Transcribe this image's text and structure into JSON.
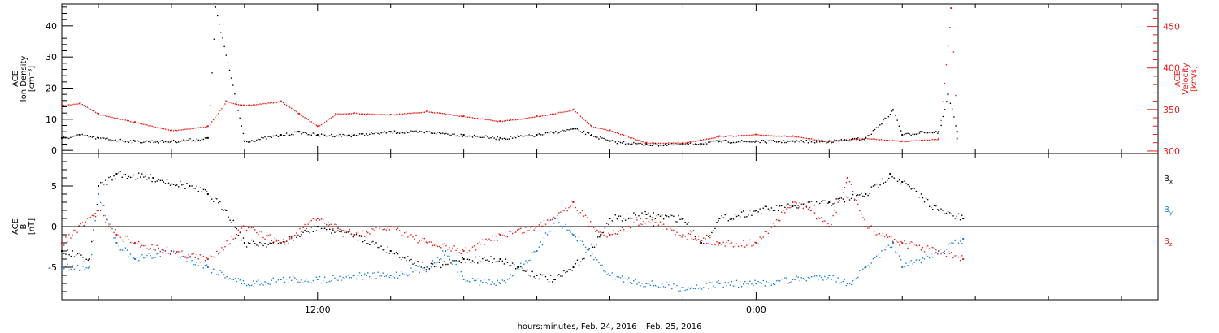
{
  "chart_data": {
    "type": "scatter",
    "colors": {
      "black": "#000000",
      "red": "#e0201c",
      "blue": "#1e7fd6"
    },
    "time_axis": {
      "range": [
        "2016-02-24 05:00",
        "2016-02-25 11:00"
      ],
      "major_ticks": [
        {
          "time": "2016-02-24 12:00",
          "label": "12:00"
        },
        {
          "time": "2016-02-25 00:00",
          "label": "0:00"
        }
      ],
      "minor_ticks_every_hours": 2,
      "title": "hours:minutes, Feb. 24, 2016 – Feb. 25, 2016"
    },
    "panels": [
      {
        "name": "density-velocity",
        "left_axis": {
          "title_lines": [
            "ACE",
            "Ion Density",
            "[cm⁻³]"
          ],
          "ylim": [
            -1,
            47
          ],
          "ticks": [
            "0",
            "10",
            "20",
            "30",
            "40"
          ],
          "color": "#000000"
        },
        "right_axis": {
          "title_lines": [
            "ACE",
            "Velocity",
            "[km/s]"
          ],
          "ylim": [
            297,
            477
          ],
          "ticks": [
            "300",
            "350",
            "400",
            "450"
          ],
          "color": "#e0201c"
        },
        "series": [
          {
            "axis": "left",
            "color": "#000000",
            "points": [
              [
                "2016-02-24 05:00",
                4
              ],
              [
                "2016-02-24 05:30",
                5
              ],
              [
                "2016-02-24 06:00",
                4
              ],
              [
                "2016-02-24 07:00",
                3
              ],
              [
                "2016-02-24 08:00",
                3
              ],
              [
                "2016-02-24 09:00",
                4
              ],
              [
                "2016-02-24 09:12",
                46
              ],
              [
                "2016-02-24 10:00",
                3
              ],
              [
                "2016-02-24 11:00",
                5
              ],
              [
                "2016-02-24 11:30",
                6
              ],
              [
                "2016-02-24 12:00",
                5
              ],
              [
                "2016-02-24 13:00",
                5
              ],
              [
                "2016-02-24 14:00",
                6
              ],
              [
                "2016-02-24 15:00",
                6
              ],
              [
                "2016-02-24 16:00",
                5
              ],
              [
                "2016-02-24 17:00",
                4
              ],
              [
                "2016-02-24 18:00",
                5
              ],
              [
                "2016-02-24 19:00",
                7
              ],
              [
                "2016-02-24 19:30",
                5
              ],
              [
                "2016-02-24 20:00",
                3
              ],
              [
                "2016-02-24 21:00",
                2
              ],
              [
                "2016-02-24 22:00",
                2
              ],
              [
                "2016-02-24 23:00",
                3
              ],
              [
                "2016-02-25 00:00",
                3
              ],
              [
                "2016-02-25 01:00",
                3
              ],
              [
                "2016-02-25 02:00",
                3
              ],
              [
                "2016-02-25 03:00",
                4
              ],
              [
                "2016-02-25 03:45",
                13
              ],
              [
                "2016-02-25 04:00",
                5
              ],
              [
                "2016-02-25 04:30",
                6
              ],
              [
                "2016-02-25 05:00",
                6
              ],
              [
                "2016-02-25 05:15",
                18
              ],
              [
                "2016-02-25 05:30",
                6
              ]
            ]
          },
          {
            "axis": "right",
            "color": "#e0201c",
            "points": [
              [
                "2016-02-24 05:00",
                355
              ],
              [
                "2016-02-24 05:30",
                358
              ],
              [
                "2016-02-24 06:00",
                345
              ],
              [
                "2016-02-24 07:00",
                335
              ],
              [
                "2016-02-24 08:00",
                325
              ],
              [
                "2016-02-24 09:00",
                330
              ],
              [
                "2016-02-24 09:30",
                360
              ],
              [
                "2016-02-24 10:00",
                355
              ],
              [
                "2016-02-24 11:00",
                360
              ],
              [
                "2016-02-24 11:30",
                345
              ],
              [
                "2016-02-24 12:00",
                330
              ],
              [
                "2016-02-24 12:30",
                345
              ],
              [
                "2016-02-24 13:00",
                346
              ],
              [
                "2016-02-24 14:00",
                344
              ],
              [
                "2016-02-24 15:00",
                348
              ],
              [
                "2016-02-24 16:00",
                342
              ],
              [
                "2016-02-24 17:00",
                336
              ],
              [
                "2016-02-24 18:00",
                342
              ],
              [
                "2016-02-24 19:00",
                350
              ],
              [
                "2016-02-24 19:30",
                330
              ],
              [
                "2016-02-24 20:00",
                325
              ],
              [
                "2016-02-24 21:00",
                310
              ],
              [
                "2016-02-24 22:00",
                310
              ],
              [
                "2016-02-24 23:00",
                318
              ],
              [
                "2016-02-25 00:00",
                320
              ],
              [
                "2016-02-25 01:00",
                318
              ],
              [
                "2016-02-25 02:00",
                312
              ],
              [
                "2016-02-25 03:00",
                316
              ],
              [
                "2016-02-25 04:00",
                312
              ],
              [
                "2016-02-25 05:00",
                315
              ],
              [
                "2016-02-25 05:20",
                472
              ],
              [
                "2016-02-25 05:30",
                315
              ]
            ]
          }
        ]
      },
      {
        "name": "magnetic-field",
        "left_axis": {
          "title_lines": [
            "ACE",
            "B",
            "[nT]"
          ],
          "ylim": [
            -9,
            9
          ],
          "ticks": [
            "-5",
            "0",
            "5"
          ],
          "zero_line": true,
          "color": "#000000"
        },
        "legend": [
          {
            "label": "B",
            "sub": "x",
            "color": "#000000"
          },
          {
            "label": "B",
            "sub": "y",
            "color": "#1e7fd6"
          },
          {
            "label": "B",
            "sub": "z",
            "color": "#e0201c"
          }
        ],
        "series": [
          {
            "name": "Bx",
            "color": "#000000",
            "points": [
              [
                "2016-02-24 05:00",
                -3
              ],
              [
                "2016-02-24 05:45",
                -4
              ],
              [
                "2016-02-24 06:00",
                5
              ],
              [
                "2016-02-24 06:30",
                6.5
              ],
              [
                "2016-02-24 07:30",
                6
              ],
              [
                "2016-02-24 08:30",
                5
              ],
              [
                "2016-02-24 09:00",
                4
              ],
              [
                "2016-02-24 09:30",
                2
              ],
              [
                "2016-02-24 10:00",
                -2
              ],
              [
                "2016-02-24 11:00",
                -2
              ],
              [
                "2016-02-24 12:00",
                0
              ],
              [
                "2016-02-24 13:00",
                -1
              ],
              [
                "2016-02-24 14:00",
                -3
              ],
              [
                "2016-02-24 15:00",
                -5
              ],
              [
                "2016-02-24 16:00",
                -4
              ],
              [
                "2016-02-24 17:00",
                -4
              ],
              [
                "2016-02-24 17:30",
                -5
              ],
              [
                "2016-02-24 18:00",
                -6
              ],
              [
                "2016-02-24 18:30",
                -6.5
              ],
              [
                "2016-02-24 19:00",
                -5
              ],
              [
                "2016-02-24 19:45",
                -1
              ],
              [
                "2016-02-24 20:00",
                1
              ],
              [
                "2016-02-24 21:00",
                1.5
              ],
              [
                "2016-02-24 22:00",
                1
              ],
              [
                "2016-02-24 22:30",
                -2
              ],
              [
                "2016-02-24 23:00",
                1
              ],
              [
                "2016-02-25 00:00",
                2
              ],
              [
                "2016-02-25 01:00",
                2.5
              ],
              [
                "2016-02-25 02:00",
                3
              ],
              [
                "2016-02-25 03:00",
                4
              ],
              [
                "2016-02-25 03:40",
                6.5
              ],
              [
                "2016-02-25 04:00",
                5.5
              ],
              [
                "2016-02-25 05:00",
                2
              ],
              [
                "2016-02-25 05:40",
                1
              ]
            ]
          },
          {
            "name": "By",
            "color": "#1e7fd6",
            "points": [
              [
                "2016-02-24 05:00",
                -5
              ],
              [
                "2016-02-24 05:45",
                -5
              ],
              [
                "2016-02-24 06:00",
                4
              ],
              [
                "2016-02-24 06:30",
                -2
              ],
              [
                "2016-02-24 07:00",
                -4
              ],
              [
                "2016-02-24 08:00",
                -3
              ],
              [
                "2016-02-24 09:00",
                -5
              ],
              [
                "2016-02-24 10:00",
                -7
              ],
              [
                "2016-02-24 11:00",
                -6.5
              ],
              [
                "2016-02-24 12:00",
                -6.5
              ],
              [
                "2016-02-24 13:00",
                -6
              ],
              [
                "2016-02-24 14:00",
                -6
              ],
              [
                "2016-02-24 15:00",
                -5
              ],
              [
                "2016-02-24 15:30",
                -3
              ],
              [
                "2016-02-24 16:00",
                -6.5
              ],
              [
                "2016-02-24 17:00",
                -7
              ],
              [
                "2016-02-24 18:00",
                -3
              ],
              [
                "2016-02-24 18:30",
                1
              ],
              [
                "2016-02-24 19:00",
                -1
              ],
              [
                "2016-02-24 20:00",
                -6
              ],
              [
                "2016-02-24 21:00",
                -7
              ],
              [
                "2016-02-24 22:00",
                -7.5
              ],
              [
                "2016-02-24 23:00",
                -7
              ],
              [
                "2016-02-25 00:00",
                -7
              ],
              [
                "2016-02-25 01:00",
                -6.5
              ],
              [
                "2016-02-25 02:00",
                -6
              ],
              [
                "2016-02-25 02:30",
                -7
              ],
              [
                "2016-02-25 03:00",
                -5
              ],
              [
                "2016-02-25 03:45",
                -2
              ],
              [
                "2016-02-25 04:00",
                -5
              ],
              [
                "2016-02-25 05:00",
                -3
              ],
              [
                "2016-02-25 05:40",
                -1.5
              ]
            ]
          },
          {
            "name": "Bz",
            "color": "#e0201c",
            "points": [
              [
                "2016-02-24 05:00",
                -2
              ],
              [
                "2016-02-24 06:00",
                2
              ],
              [
                "2016-02-24 06:30",
                -1
              ],
              [
                "2016-02-24 07:00",
                -2
              ],
              [
                "2016-02-24 08:00",
                -3
              ],
              [
                "2016-02-24 09:00",
                -4
              ],
              [
                "2016-02-24 10:00",
                0
              ],
              [
                "2016-02-24 11:00",
                -2
              ],
              [
                "2016-02-24 12:00",
                1
              ],
              [
                "2016-02-24 13:00",
                -1
              ],
              [
                "2016-02-24 14:00",
                0
              ],
              [
                "2016-02-24 15:00",
                -2
              ],
              [
                "2016-02-24 16:00",
                -3
              ],
              [
                "2016-02-24 17:00",
                -1
              ],
              [
                "2016-02-24 18:00",
                0
              ],
              [
                "2016-02-24 19:00",
                3
              ],
              [
                "2016-02-24 19:30",
                0
              ],
              [
                "2016-02-24 20:00",
                -1
              ],
              [
                "2016-02-24 21:00",
                1
              ],
              [
                "2016-02-24 22:00",
                -1
              ],
              [
                "2016-02-24 23:00",
                -2
              ],
              [
                "2016-02-25 00:00",
                -2
              ],
              [
                "2016-02-25 01:00",
                3
              ],
              [
                "2016-02-25 01:30",
                2
              ],
              [
                "2016-02-25 02:00",
                0
              ],
              [
                "2016-02-25 02:30",
                6
              ],
              [
                "2016-02-25 03:00",
                0
              ],
              [
                "2016-02-25 04:00",
                -2
              ],
              [
                "2016-02-25 05:00",
                -3
              ],
              [
                "2016-02-25 05:40",
                -4
              ]
            ]
          }
        ]
      }
    ]
  }
}
